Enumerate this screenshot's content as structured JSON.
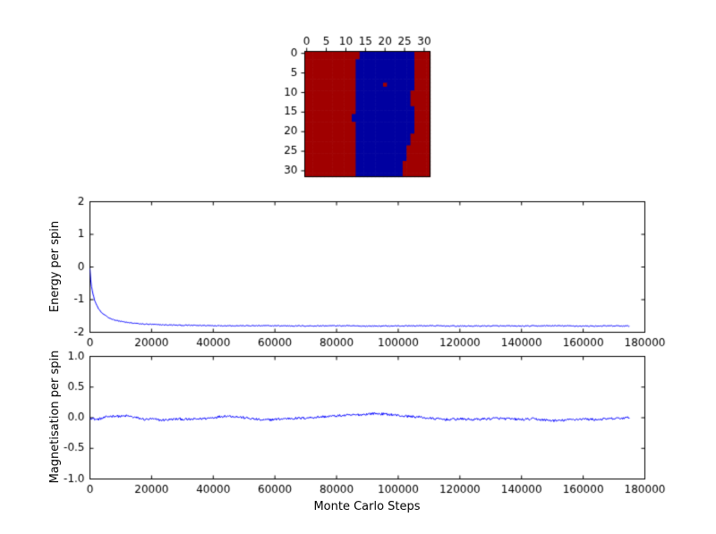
{
  "figure": {
    "background": "#ffffff"
  },
  "chart_data": [
    {
      "id": "lattice",
      "type": "heatmap",
      "title": "",
      "grid_size": 32,
      "xticks": {
        "values": [
          0,
          5,
          10,
          15,
          20,
          25,
          30
        ],
        "labels": [
          "0",
          "5",
          "10",
          "15",
          "20",
          "25",
          "30"
        ]
      },
      "yticks": {
        "values": [
          0,
          5,
          10,
          15,
          20,
          25,
          30
        ],
        "labels": [
          "0",
          "5",
          "10",
          "15",
          "20",
          "25",
          "30"
        ]
      },
      "colors": {
        "spin_up": "#a00000",
        "spin_down": "#0000a0"
      },
      "rows": [
        "rrrrrrrrrrrrrrbbbbbbbbbbbbbbrrrr",
        "rrrrrrrrrrrrrrbbbbbbbbbbbbbbrrrr",
        "rrrrrrrrrrrrrbbbbbbbbbbbbbbbrrrr",
        "rrrrrrrrrrrrrbbbbbbbbbbbbbbbrrrr",
        "rrrrrrrrrrrrrbbbbbbbbbbbbbbbrrrr",
        "rrrrrrrrrrrrrbbbbbbbbbbbbbbbrrrr",
        "rrrrrrrrrrrrrbbbbbbbbbbbbbbbrrrr",
        "rrrrrrrrrrrrrbbbbbbbbbbbbbbbrrrr",
        "rrrrrrrrrrrrrbbbbbbbrbbbbbbbrrrr",
        "rrrrrrrrrrrrrbbbbbbbbbbbbbbbrrrr",
        "rrrrrrrrrrrrrbbbbbbbbbbbbbbrrrrr",
        "rrrrrrrrrrrrrbbbbbbbbbbbbbbrrrrr",
        "rrrrrrrrrrrrrbbbbbbbbbbbbbbrrrrr",
        "rrrrrrrrrrrrrbbbbbbbbbbbbbbrrrrr",
        "rrrrrrrrrrrrrbbbbbbbbbbbbbbbrrrr",
        "rrrrrrrrrrrrrbbbbbbbbbbbbbbbrrrr",
        "rrrrrrrrrrrrbbbbbbbbbbbbbbbbrrrr",
        "rrrrrrrrrrrrbbbbbbbbbbbbbbbbrrrr",
        "rrrrrrrrrrrrrbbbbbbbbbbbbbbbrrrr",
        "rrrrrrrrrrrrrbbbbbbbbbbbbbbbrrrr",
        "rrrrrrrrrrrrrbbbbbbbbbbbbbbbrrrr",
        "rrrrrrrrrrrrrbbbbbbbbbbbbbbrrrrr",
        "rrrrrrrrrrrrrbbbbbbbbbbbbbbrrrrr",
        "rrrrrrrrrrrrrbbbbbbbbbbbbbbrrrrr",
        "rrrrrrrrrrrrrbbbbbbbbbbbbbrrrrrr",
        "rrrrrrrrrrrrrbbbbbbbbbbbbbrrrrrr",
        "rrrrrrrrrrrrrbbbbbbbbbbbbbrrrrrr",
        "rrrrrrrrrrrrrbbbbbbbbbbbbbrrrrrr",
        "rrrrrrrrrrrrrbbbbbbbbbbbbrrrrrrr",
        "rrrrrrrrrrrrrbbbbbbbbbbbbrrrrrrr",
        "rrrrrrrrrrrrrbbbbbbbbbbbbrrrrrrr",
        "rrrrrrrrrrrrrbbbbbbbbbbbbrrrrrrr"
      ]
    },
    {
      "id": "energy",
      "type": "line",
      "ylabel": "Energy per spin",
      "xlabel": "",
      "xlim": [
        0,
        180000
      ],
      "ylim": [
        -2,
        2
      ],
      "xticks": {
        "values": [
          0,
          20000,
          40000,
          60000,
          80000,
          100000,
          120000,
          140000,
          160000,
          180000
        ],
        "labels": [
          "0",
          "20000",
          "40000",
          "60000",
          "80000",
          "100000",
          "120000",
          "140000",
          "160000",
          "180000"
        ]
      },
      "yticks": {
        "values": [
          -2,
          -1,
          0,
          1,
          2
        ],
        "labels": [
          "-2",
          "-1",
          "0",
          "1",
          "2"
        ]
      },
      "line_color": "#0000ff",
      "points": [
        [
          0,
          -0.05
        ],
        [
          250,
          -0.38
        ],
        [
          500,
          -0.58
        ],
        [
          750,
          -0.72
        ],
        [
          1000,
          -0.84
        ],
        [
          1500,
          -1.01
        ],
        [
          2000,
          -1.13
        ],
        [
          2500,
          -1.23
        ],
        [
          3000,
          -1.31
        ],
        [
          4000,
          -1.42
        ],
        [
          5000,
          -1.49
        ],
        [
          6000,
          -1.55
        ],
        [
          7000,
          -1.59
        ],
        [
          8000,
          -1.62
        ],
        [
          9000,
          -1.645
        ],
        [
          10000,
          -1.665
        ],
        [
          12000,
          -1.7
        ],
        [
          14000,
          -1.72
        ],
        [
          16000,
          -1.74
        ],
        [
          18000,
          -1.75
        ],
        [
          20000,
          -1.76
        ],
        [
          25000,
          -1.775
        ],
        [
          30000,
          -1.785
        ],
        [
          35000,
          -1.79
        ],
        [
          40000,
          -1.795
        ],
        [
          50000,
          -1.8
        ],
        [
          60000,
          -1.8
        ],
        [
          70000,
          -1.805
        ],
        [
          80000,
          -1.8
        ],
        [
          90000,
          -1.81
        ],
        [
          100000,
          -1.805
        ],
        [
          110000,
          -1.8
        ],
        [
          120000,
          -1.81
        ],
        [
          130000,
          -1.805
        ],
        [
          140000,
          -1.81
        ],
        [
          150000,
          -1.8
        ],
        [
          160000,
          -1.81
        ],
        [
          170000,
          -1.805
        ],
        [
          175000,
          -1.81
        ]
      ]
    },
    {
      "id": "magnetisation",
      "type": "line",
      "ylabel": "Magnetisation per spin",
      "xlabel": "Monte Carlo Steps",
      "xlim": [
        0,
        180000
      ],
      "ylim": [
        -1,
        1
      ],
      "xticks": {
        "values": [
          0,
          20000,
          40000,
          60000,
          80000,
          100000,
          120000,
          140000,
          160000,
          180000
        ],
        "labels": [
          "0",
          "20000",
          "40000",
          "60000",
          "80000",
          "100000",
          "120000",
          "140000",
          "160000",
          "180000"
        ]
      },
      "yticks": {
        "values": [
          -1,
          -0.5,
          0,
          0.5,
          1
        ],
        "labels": [
          "-1.0",
          "-0.5",
          "0.0",
          "0.5",
          "1.0"
        ]
      },
      "line_color": "#0000ff",
      "points": [
        [
          0,
          0.0
        ],
        [
          2000,
          -0.03
        ],
        [
          4000,
          -0.01
        ],
        [
          6000,
          0.02
        ],
        [
          8000,
          0.03
        ],
        [
          10000,
          0.02
        ],
        [
          12000,
          0.03
        ],
        [
          14000,
          0.01
        ],
        [
          16000,
          -0.01
        ],
        [
          18000,
          -0.03
        ],
        [
          20000,
          -0.02
        ],
        [
          23000,
          -0.04
        ],
        [
          26000,
          -0.03
        ],
        [
          29000,
          -0.02
        ],
        [
          32000,
          -0.03
        ],
        [
          35000,
          -0.02
        ],
        [
          38000,
          -0.01
        ],
        [
          41000,
          0.01
        ],
        [
          44000,
          0.03
        ],
        [
          47000,
          0.02
        ],
        [
          50000,
          0.0
        ],
        [
          53000,
          -0.02
        ],
        [
          56000,
          -0.04
        ],
        [
          59000,
          -0.03
        ],
        [
          62000,
          -0.02
        ],
        [
          65000,
          -0.01
        ],
        [
          68000,
          -0.01
        ],
        [
          71000,
          0.0
        ],
        [
          74000,
          0.01
        ],
        [
          77000,
          0.02
        ],
        [
          80000,
          0.03
        ],
        [
          84000,
          0.04
        ],
        [
          88000,
          0.05
        ],
        [
          92000,
          0.07
        ],
        [
          95000,
          0.06
        ],
        [
          98000,
          0.05
        ],
        [
          101000,
          0.03
        ],
        [
          104000,
          0.02
        ],
        [
          107000,
          0.01
        ],
        [
          110000,
          -0.01
        ],
        [
          113000,
          -0.02
        ],
        [
          116000,
          -0.03
        ],
        [
          120000,
          -0.02
        ],
        [
          124000,
          -0.03
        ],
        [
          128000,
          -0.02
        ],
        [
          132000,
          -0.01
        ],
        [
          136000,
          -0.02
        ],
        [
          140000,
          -0.03
        ],
        [
          144000,
          -0.02
        ],
        [
          148000,
          -0.04
        ],
        [
          152000,
          -0.05
        ],
        [
          156000,
          -0.03
        ],
        [
          160000,
          -0.02
        ],
        [
          164000,
          -0.03
        ],
        [
          168000,
          -0.02
        ],
        [
          172000,
          -0.01
        ],
        [
          175000,
          0.0
        ]
      ]
    }
  ]
}
